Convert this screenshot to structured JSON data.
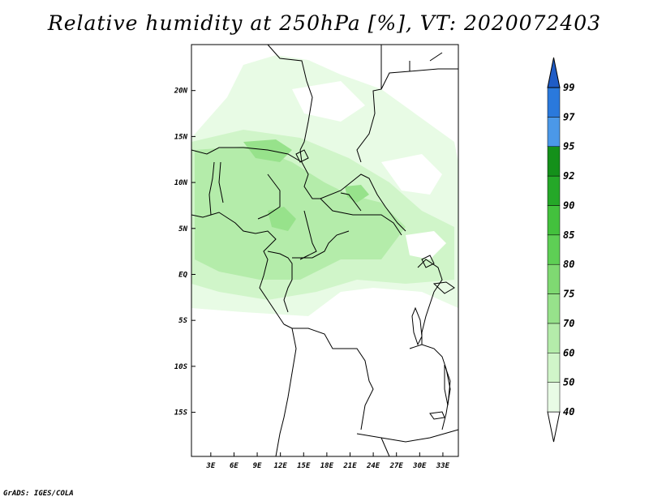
{
  "title": "Relative humidity at 250hPa [%], VT: 2020072403",
  "credit": "GrADS: IGES/COLA",
  "map": {
    "lat_labels": [
      "20N",
      "15N",
      "10N",
      "5N",
      "EQ",
      "5S",
      "10S",
      "15S"
    ],
    "lat_values": [
      20,
      15,
      10,
      5,
      0,
      -5,
      -10,
      -15
    ],
    "lon_labels": [
      "3E",
      "6E",
      "9E",
      "12E",
      "15E",
      "18E",
      "21E",
      "24E",
      "27E",
      "30E",
      "33E"
    ],
    "lon_values": [
      3,
      6,
      9,
      12,
      15,
      18,
      21,
      24,
      27,
      30,
      33
    ],
    "lon_range": [
      0.5,
      35
    ],
    "lat_range": [
      -19.8,
      25
    ]
  },
  "colorbar": {
    "labels": [
      "40",
      "50",
      "60",
      "70",
      "75",
      "80",
      "85",
      "90",
      "92",
      "95",
      "97",
      "99"
    ],
    "colors": [
      "#e8fbe5",
      "#d0f5c9",
      "#b4ecaa",
      "#97e28b",
      "#7fd972",
      "#5ecf55",
      "#43c13d",
      "#25a828",
      "#14901a",
      "#4b98e8",
      "#2a79dc",
      "#1f5cc6"
    ],
    "under_color": "#ffffff"
  }
}
